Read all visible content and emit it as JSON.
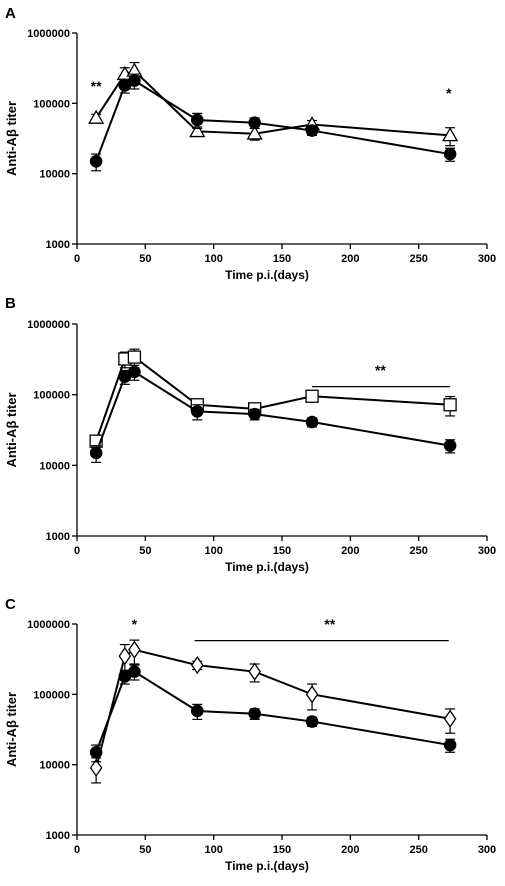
{
  "chart_data": [
    {
      "type": "line",
      "panel_label": "A",
      "xlabel": "Time p.i.(days)",
      "ylabel": "Anti-Aβ titer",
      "xlim": [
        0,
        300
      ],
      "ylim": [
        1000,
        1000000
      ],
      "yscale": "log",
      "x_ticks": [
        "0",
        "50",
        "100",
        "150",
        "200",
        "250",
        "300"
      ],
      "y_ticks": [
        "1000",
        "10000",
        "100000",
        "1000000"
      ],
      "series": [
        {
          "marker": "circle-filled",
          "x": [
            14,
            35,
            42,
            88,
            130,
            172,
            273
          ],
          "y": [
            15000,
            180000,
            210000,
            58000,
            53000,
            41000,
            19000
          ],
          "err": [
            4000,
            40000,
            50000,
            14000,
            9000,
            6000,
            4000
          ]
        },
        {
          "marker": "triangle-open",
          "x": [
            14,
            35,
            42,
            88,
            130,
            172,
            273
          ],
          "y": [
            62000,
            260000,
            290000,
            40000,
            37000,
            50000,
            35000
          ],
          "err": [
            8000,
            60000,
            90000,
            6000,
            7000,
            7000,
            10000
          ]
        }
      ],
      "annotations": [
        {
          "text": "**",
          "x": 14,
          "y": 150000
        },
        {
          "text": "*",
          "x": 272,
          "y": 120000
        }
      ]
    },
    {
      "type": "line",
      "panel_label": "B",
      "xlabel": "Time p.i.(days)",
      "ylabel": "Anti-Aβ titer",
      "xlim": [
        0,
        300
      ],
      "ylim": [
        1000,
        1000000
      ],
      "yscale": "log",
      "x_ticks": [
        "0",
        "50",
        "100",
        "150",
        "200",
        "250",
        "300"
      ],
      "y_ticks": [
        "1000",
        "10000",
        "100000",
        "1000000"
      ],
      "series": [
        {
          "marker": "circle-filled",
          "x": [
            14,
            35,
            42,
            88,
            130,
            172,
            273
          ],
          "y": [
            15000,
            180000,
            210000,
            58000,
            53000,
            41000,
            19000
          ],
          "err": [
            4000,
            40000,
            50000,
            14000,
            9000,
            6000,
            4000
          ]
        },
        {
          "marker": "square-open",
          "x": [
            14,
            35,
            42,
            88,
            130,
            172,
            273
          ],
          "y": [
            22000,
            320000,
            340000,
            72000,
            63000,
            95000,
            72000
          ],
          "err": [
            4000,
            80000,
            100000,
            14000,
            10000,
            9000,
            22000
          ]
        }
      ],
      "annotations": [
        {
          "text": "**",
          "x": 222,
          "y": 190000
        }
      ],
      "brackets": [
        {
          "x1": 172,
          "x2": 273,
          "y": 130000
        }
      ]
    },
    {
      "type": "line",
      "panel_label": "C",
      "xlabel": "Time p.i.(days)",
      "ylabel": "Anti-Aβ titer",
      "xlim": [
        0,
        300
      ],
      "ylim": [
        1000,
        1000000
      ],
      "yscale": "log",
      "x_ticks": [
        "0",
        "50",
        "100",
        "150",
        "200",
        "250",
        "300"
      ],
      "y_ticks": [
        "1000",
        "10000",
        "100000",
        "1000000"
      ],
      "series": [
        {
          "marker": "circle-filled",
          "x": [
            14,
            35,
            42,
            88,
            130,
            172,
            273
          ],
          "y": [
            15000,
            180000,
            210000,
            58000,
            53000,
            41000,
            19000
          ],
          "err": [
            4000,
            40000,
            50000,
            14000,
            9000,
            6000,
            4000
          ]
        },
        {
          "marker": "diamond-open",
          "x": [
            14,
            35,
            42,
            88,
            130,
            172,
            273
          ],
          "y": [
            9000,
            350000,
            430000,
            260000,
            210000,
            100000,
            45000
          ],
          "err": [
            3500,
            160000,
            160000,
            35000,
            60000,
            40000,
            17000
          ]
        }
      ],
      "annotations": [
        {
          "text": "*",
          "x": 42,
          "y": 850000
        },
        {
          "text": "**",
          "x": 185,
          "y": 850000
        }
      ],
      "brackets": [
        {
          "x1": 86,
          "x2": 272,
          "y": 580000
        }
      ]
    }
  ]
}
